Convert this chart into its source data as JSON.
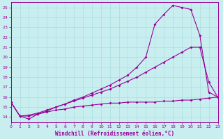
{
  "xlabel": "Windchill (Refroidissement éolien,°C)",
  "bg_color": "#c8eef0",
  "grid_color": "#aadddd",
  "line_color": "#990099",
  "xlim": [
    0,
    23
  ],
  "ylim": [
    13.5,
    25.5
  ],
  "xticks": [
    0,
    1,
    2,
    3,
    4,
    5,
    6,
    7,
    8,
    9,
    10,
    11,
    12,
    13,
    14,
    15,
    16,
    17,
    18,
    19,
    20,
    21,
    22,
    23
  ],
  "yticks": [
    14,
    15,
    16,
    17,
    18,
    19,
    20,
    21,
    22,
    23,
    24,
    25
  ],
  "series1_x": [
    0,
    1,
    2,
    3,
    4,
    5,
    6,
    7,
    8,
    9,
    10,
    11,
    12,
    13,
    14,
    15,
    16,
    17,
    18,
    19,
    20,
    21,
    22,
    23
  ],
  "series1_y": [
    15.5,
    14.1,
    14.1,
    14.3,
    14.5,
    14.7,
    14.8,
    15.0,
    15.1,
    15.2,
    15.3,
    15.4,
    15.4,
    15.5,
    15.5,
    15.5,
    15.5,
    15.6,
    15.6,
    15.7,
    15.7,
    15.8,
    15.9,
    16.0
  ],
  "series2_x": [
    0,
    1,
    2,
    3,
    4,
    5,
    6,
    7,
    8,
    9,
    10,
    11,
    12,
    13,
    14,
    15,
    16,
    17,
    18,
    19,
    20,
    21,
    22,
    23
  ],
  "series2_y": [
    15.5,
    14.1,
    14.2,
    14.4,
    14.7,
    15.0,
    15.3,
    15.6,
    15.9,
    16.2,
    16.5,
    16.8,
    17.2,
    17.6,
    18.0,
    18.5,
    19.0,
    19.5,
    20.0,
    20.5,
    21.0,
    21.0,
    17.5,
    16.0
  ],
  "series3_x": [
    0,
    1,
    2,
    3,
    4,
    5,
    6,
    7,
    8,
    9,
    10,
    11,
    12,
    13,
    14,
    15,
    16,
    17,
    18,
    19,
    20,
    21,
    22,
    23
  ],
  "series3_y": [
    15.5,
    14.1,
    13.8,
    14.3,
    14.6,
    15.0,
    15.3,
    15.7,
    16.0,
    16.4,
    16.8,
    17.2,
    17.7,
    18.2,
    19.0,
    20.0,
    23.3,
    24.3,
    25.2,
    25.0,
    24.8,
    22.2,
    16.5,
    16.0
  ]
}
